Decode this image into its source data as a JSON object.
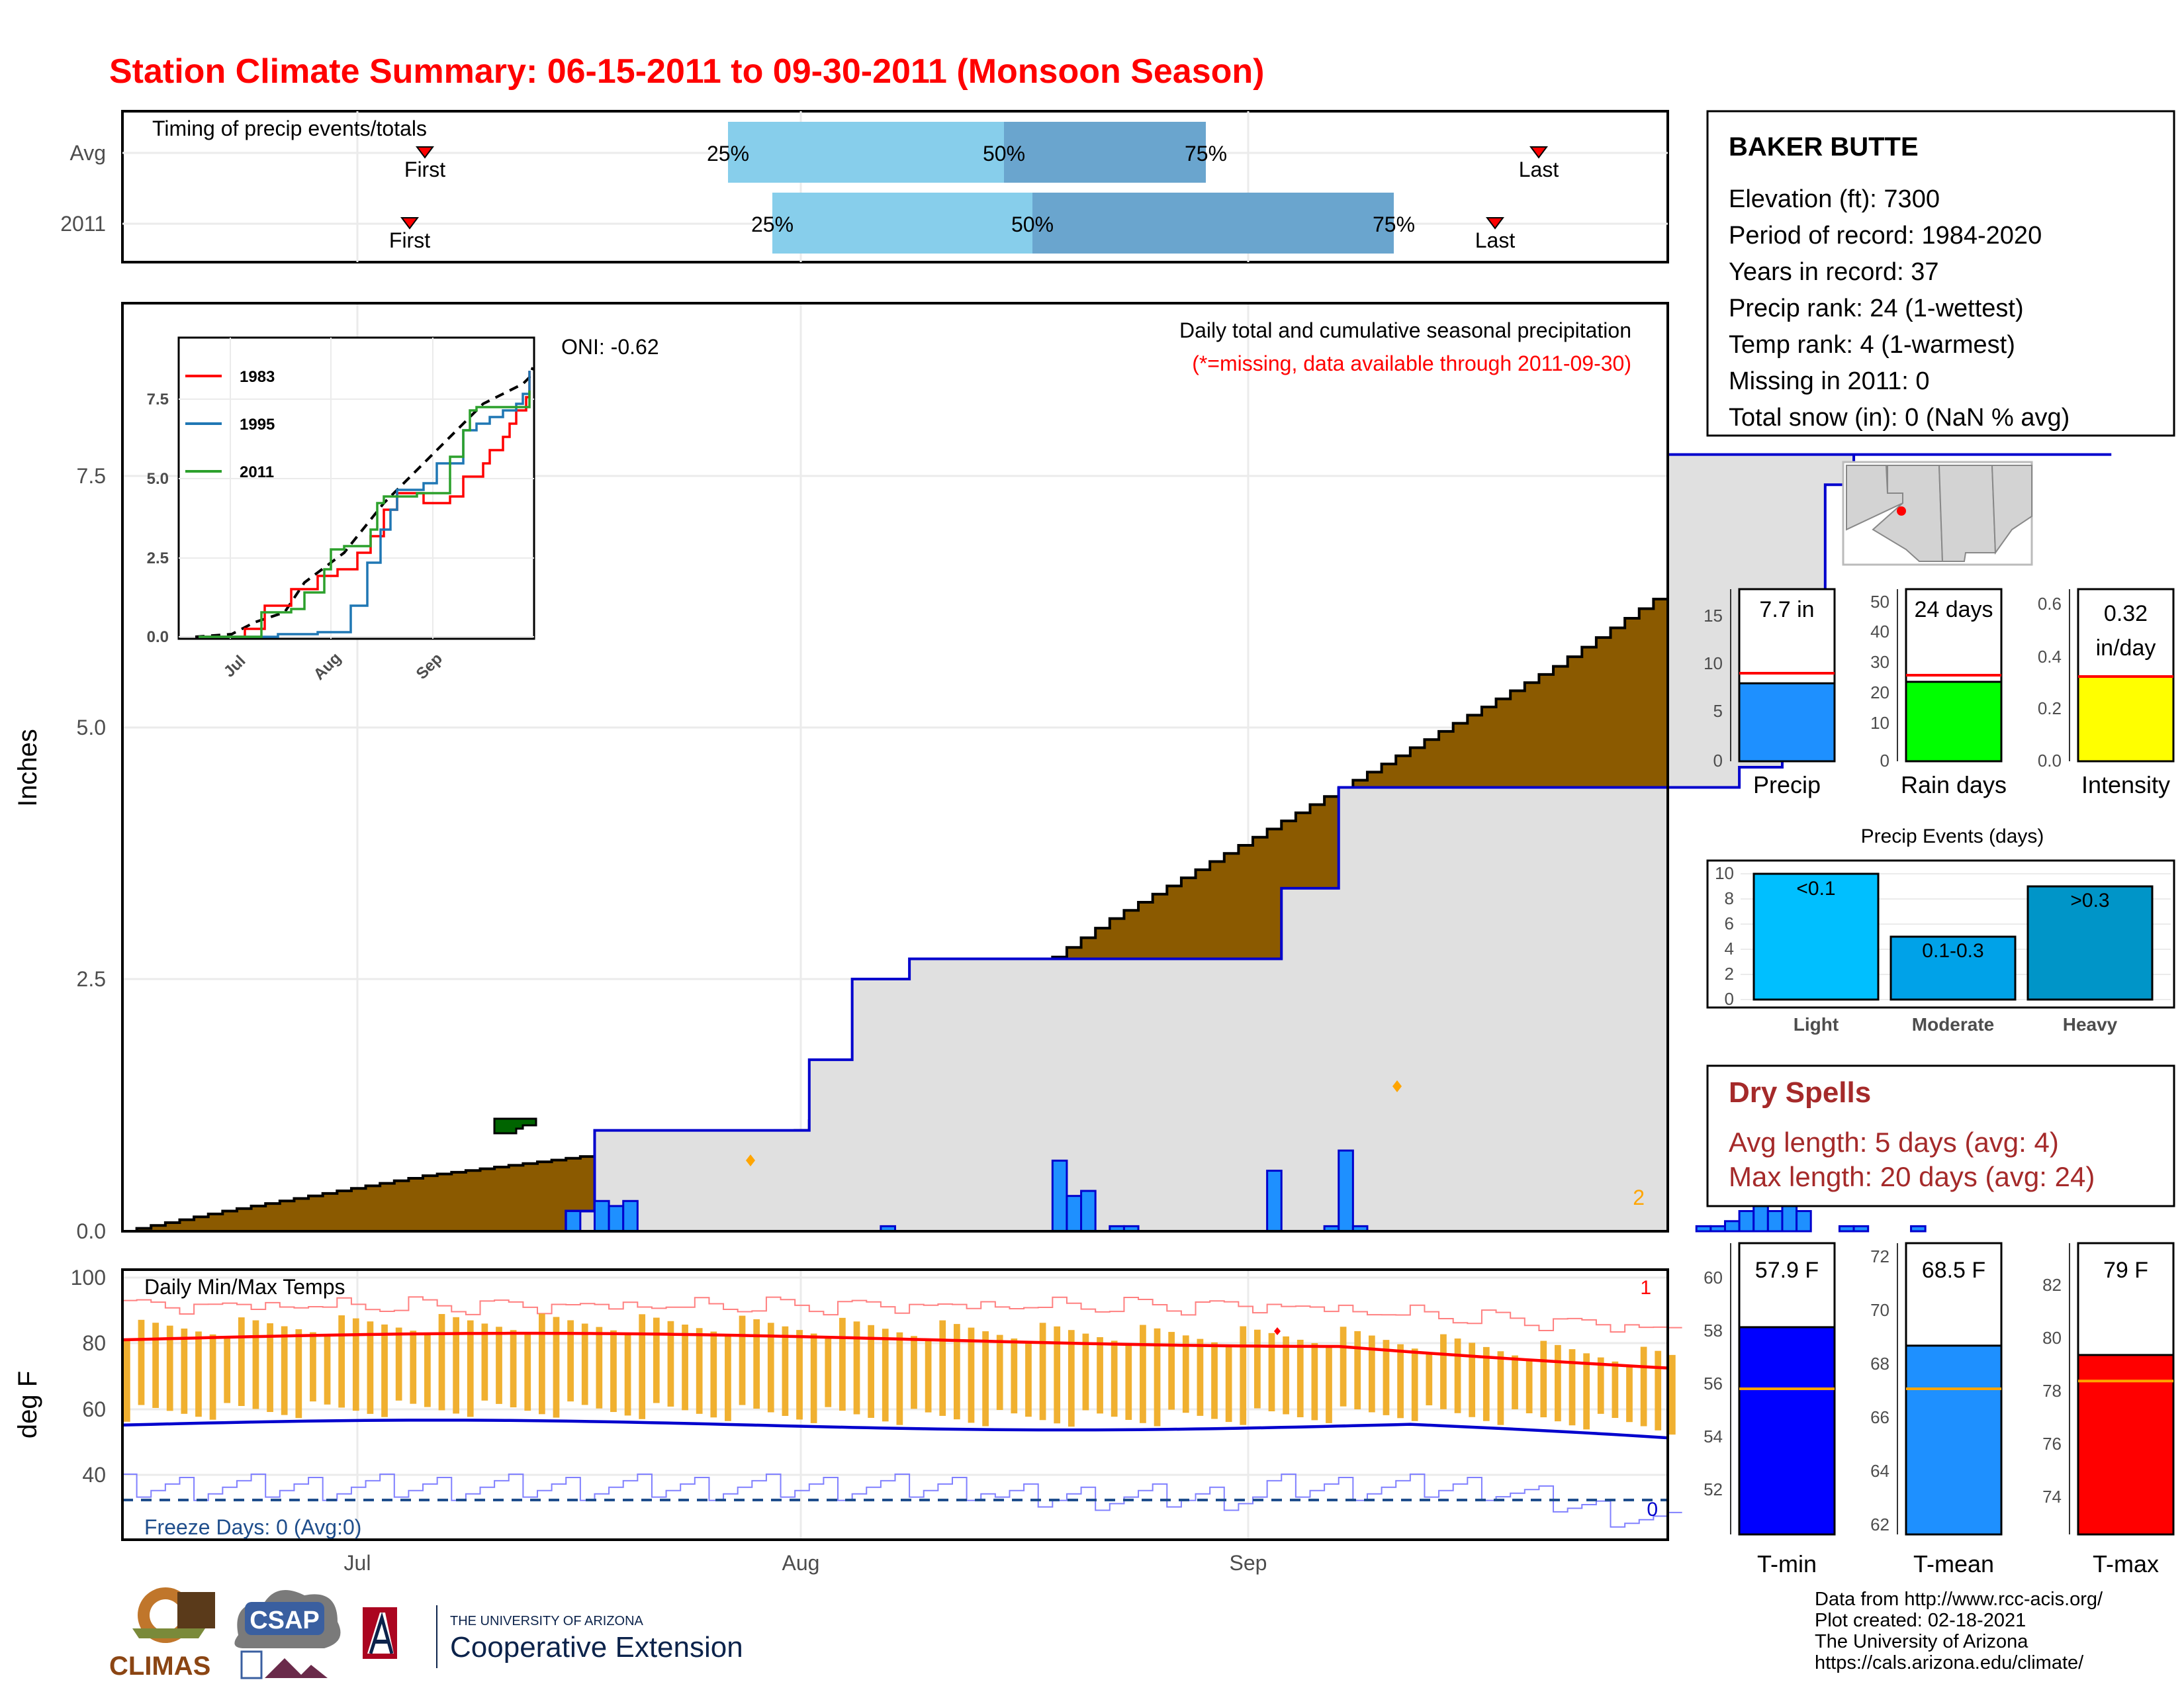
{
  "title": "Station Climate Summary: 06-15-2011 to 09-30-2011 (Monsoon Season)",
  "colors": {
    "title": "#ff0000",
    "cum_fill": "#8b5a00",
    "avg_fill": "#e0e0e0",
    "daily_bar": "#1e90ff",
    "dry_spells": "#a52a2a"
  },
  "station": {
    "name": "BAKER BUTTE",
    "lines": [
      "Elevation (ft): 7300",
      "Period of record: 1984-2020",
      "Years in record: 37",
      "Precip rank: 24 (1-wettest)",
      "Temp rank: 4 (1-warmest)",
      "Missing in 2011: 0",
      "Total snow (in): 0 (NaN % avg)"
    ]
  },
  "timing": {
    "title": "Timing of precip events/totals",
    "rows": [
      "Avg",
      "2011"
    ],
    "first_label": "First",
    "last_label": "Last"
  },
  "main": {
    "ylabel": "Inches",
    "title": "Daily total and cumulative seasonal precipitation",
    "subtitle": "(*=missing, data available through 2011-09-30)",
    "oni": "ONI: -0.62",
    "corner_count": "2"
  },
  "temps": {
    "ylabel": "deg F",
    "title": "Daily Min/Max Temps",
    "freeze": "Freeze Days: 0 (Avg:0)",
    "record_high_count": "1",
    "record_low_count": "0"
  },
  "x_ticks": [
    "Jul",
    "Aug",
    "Sep"
  ],
  "summary_bars": [
    {
      "label": "Precip",
      "value_text": "7.7 in",
      "color": "#1e90ff"
    },
    {
      "label": "Rain days",
      "value_text": "24 days",
      "color": "#00ff00"
    },
    {
      "label": "Intensity",
      "value_text": "0.32 in/day",
      "color": "#ffff00"
    }
  ],
  "events": {
    "title": "Precip Events (days)",
    "categories": [
      "Light",
      "Moderate",
      "Heavy"
    ],
    "bar_labels": [
      "<0.1",
      "0.1-0.3",
      ">0.3"
    ]
  },
  "dry_spells": {
    "title": "Dry Spells",
    "avg": "Avg length: 5 days (avg: 4)",
    "max": "Max length: 20 days (avg: 24)"
  },
  "temp_bars": [
    {
      "label": "T-min",
      "value_text": "57.9 F",
      "color": "#0000ff"
    },
    {
      "label": "T-mean",
      "value_text": "68.5 F",
      "color": "#1e90ff"
    },
    {
      "label": "T-max",
      "value_text": "79 F",
      "color": "#ff0000"
    }
  ],
  "credits": [
    "Data from http://www.rcc-acis.org/",
    "Plot created: 02-18-2021",
    "The University of Arizona",
    "https://cals.arizona.edu/climate/"
  ],
  "logos": {
    "climas": "CLIMAS",
    "csap": "CSAP",
    "ua_small": "THE UNIVERSITY OF ARIZONA",
    "coop": "Cooperative Extension"
  },
  "chart_data": [
    {
      "type": "step-area",
      "name": "cumulative precipitation",
      "xlabel": "",
      "ylabel": "Inches",
      "ylim": [
        0,
        9.2
      ],
      "x_range": [
        "2011-06-15",
        "2011-09-30"
      ],
      "cumulative_2011": [
        [
          0,
          0
        ],
        [
          31,
          0.2
        ],
        [
          33,
          1.0
        ],
        [
          37,
          1.0
        ],
        [
          47,
          1.0
        ],
        [
          48,
          1.7
        ],
        [
          51,
          2.5
        ],
        [
          55,
          2.7
        ],
        [
          77,
          2.7
        ],
        [
          81,
          3.4
        ],
        [
          85,
          4.4
        ],
        [
          110,
          4.4
        ],
        [
          113,
          4.6
        ],
        [
          116,
          5.7
        ],
        [
          119,
          7.4
        ],
        [
          121,
          7.7
        ],
        [
          139,
          7.7
        ]
      ],
      "cumulative_avg_endpoints": [
        [
          0,
          0
        ],
        [
          7,
          0.2
        ],
        [
          21,
          0.55
        ],
        [
          47,
          1.0
        ],
        [
          69,
          3.1
        ],
        [
          100,
          5.6
        ],
        [
          121,
          7.6
        ],
        [
          131,
          7.9
        ],
        [
          139,
          8.4
        ]
      ],
      "daily_precip": [
        [
          31,
          0.2
        ],
        [
          33,
          0.3
        ],
        [
          34,
          0.25
        ],
        [
          35,
          0.3
        ],
        [
          53,
          0.05
        ],
        [
          65,
          0.7
        ],
        [
          66,
          0.35
        ],
        [
          67,
          0.4
        ],
        [
          69,
          0.05
        ],
        [
          70,
          0.05
        ],
        [
          80,
          0.6
        ],
        [
          84,
          0.05
        ],
        [
          85,
          0.8
        ],
        [
          86,
          0.05
        ],
        [
          110,
          0.05
        ],
        [
          111,
          0.05
        ],
        [
          112,
          0.1
        ],
        [
          113,
          0.2
        ],
        [
          114,
          0.9
        ],
        [
          115,
          0.2
        ],
        [
          116,
          1.4
        ],
        [
          117,
          0.2
        ],
        [
          120,
          0.05
        ],
        [
          121,
          0.05
        ],
        [
          125,
          0.05
        ]
      ]
    },
    {
      "type": "bar",
      "name": "precip events",
      "categories": [
        "Light",
        "Moderate",
        "Heavy"
      ],
      "values": [
        10,
        5,
        9
      ],
      "ylim": [
        0,
        10
      ]
    },
    {
      "type": "bar",
      "name": "season totals",
      "categories": [
        "Precip",
        "Rain days",
        "Intensity"
      ],
      "values": [
        7.7,
        24,
        0.32
      ],
      "averages": [
        8.7,
        26,
        0.32
      ],
      "ylims": [
        [
          0,
          17
        ],
        [
          0,
          52
        ],
        [
          0,
          0.65
        ]
      ]
    },
    {
      "type": "bar",
      "name": "season temperatures",
      "categories": [
        "T-min",
        "T-mean",
        "T-max"
      ],
      "values": [
        57.9,
        68.5,
        79
      ],
      "averages": [
        55.7,
        66.9,
        78
      ],
      "ylims": [
        [
          50.5,
          60.9
        ],
        [
          61.5,
          72.3
        ],
        [
          72.1,
          83.3
        ]
      ]
    },
    {
      "type": "line",
      "name": "inset cumulative",
      "x_ticks": [
        "Jul",
        "Aug",
        "Sep"
      ],
      "y_ticks": [
        0,
        2.5,
        5,
        7.5
      ],
      "series": [
        {
          "name": "1983",
          "color": "#ff0000"
        },
        {
          "name": "1995",
          "color": "#1f77b4"
        },
        {
          "name": "2011",
          "color": "#2ca02c"
        }
      ]
    }
  ]
}
